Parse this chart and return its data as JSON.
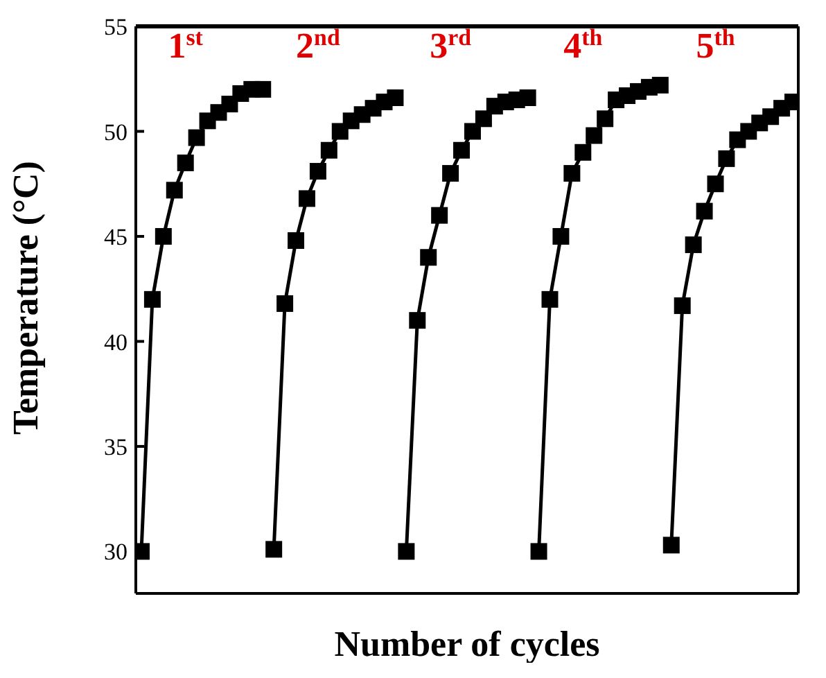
{
  "chart_data": {
    "type": "line",
    "xlabel": "Number of cycles",
    "ylabel": "Temperature (°C)",
    "categories": [
      null,
      null,
      null,
      null,
      null,
      null,
      null,
      null,
      null,
      null,
      null,
      null,
      null,
      null,
      null,
      null,
      null,
      null,
      null,
      null,
      null,
      null,
      null,
      null,
      null,
      null,
      null,
      null,
      null,
      null,
      null,
      null,
      null,
      null,
      null,
      null,
      null,
      null,
      null,
      null,
      null,
      null,
      null,
      null,
      null,
      null,
      null,
      null,
      null,
      null,
      null,
      null,
      null,
      null,
      null,
      null,
      null,
      null,
      null,
      null
    ],
    "series": [
      {
        "color": "#000000",
        "values": [
          30,
          42,
          45,
          47.2,
          48.5,
          49.7,
          50.5,
          50.9,
          51.3,
          51.8,
          52,
          52,
          null,
          null,
          null,
          null,
          null,
          null,
          null,
          null,
          null,
          null,
          null,
          null,
          null,
          null,
          null,
          null,
          null,
          null,
          null,
          null,
          null,
          null,
          null,
          null,
          null,
          null,
          null,
          null,
          null,
          null,
          null,
          null,
          null,
          null,
          null,
          null,
          null,
          null,
          null,
          null,
          null,
          null,
          null,
          null,
          null,
          null,
          null,
          null
        ]
      },
      {
        "color": "#000000",
        "values": [
          null,
          null,
          null,
          null,
          null,
          null,
          null,
          null,
          null,
          null,
          null,
          null,
          30.1,
          41.8,
          44.8,
          46.8,
          48.1,
          49.1,
          50,
          50.5,
          50.8,
          51.1,
          51.4,
          51.6,
          null,
          null,
          null,
          null,
          null,
          null,
          null,
          null,
          null,
          null,
          null,
          null,
          null,
          null,
          null,
          null,
          null,
          null,
          null,
          null,
          null,
          null,
          null,
          null,
          null,
          null,
          null,
          null,
          null,
          null,
          null,
          null,
          null,
          null,
          null,
          null
        ]
      },
      {
        "color": "#000000",
        "values": [
          null,
          null,
          null,
          null,
          null,
          null,
          null,
          null,
          null,
          null,
          null,
          null,
          null,
          null,
          null,
          null,
          null,
          null,
          null,
          null,
          null,
          null,
          null,
          null,
          30,
          41,
          44,
          46,
          48,
          49.1,
          50,
          50.6,
          51.2,
          51.4,
          51.5,
          51.6,
          null,
          null,
          null,
          null,
          null,
          null,
          null,
          null,
          null,
          null,
          null,
          null,
          null,
          null,
          null,
          null,
          null,
          null,
          null,
          null,
          null,
          null,
          null,
          null
        ]
      },
      {
        "color": "#000000",
        "values": [
          null,
          null,
          null,
          null,
          null,
          null,
          null,
          null,
          null,
          null,
          null,
          null,
          null,
          null,
          null,
          null,
          null,
          null,
          null,
          null,
          null,
          null,
          null,
          null,
          null,
          null,
          null,
          null,
          null,
          null,
          null,
          null,
          null,
          null,
          null,
          null,
          30,
          42,
          45,
          48,
          49,
          49.8,
          50.6,
          51.5,
          51.7,
          51.9,
          52.1,
          52.2,
          null,
          null,
          null,
          null,
          null,
          null,
          null,
          null,
          null,
          null,
          null,
          null
        ]
      },
      {
        "color": "#000000",
        "values": [
          null,
          null,
          null,
          null,
          null,
          null,
          null,
          null,
          null,
          null,
          null,
          null,
          null,
          null,
          null,
          null,
          null,
          null,
          null,
          null,
          null,
          null,
          null,
          null,
          null,
          null,
          null,
          null,
          null,
          null,
          null,
          null,
          null,
          null,
          null,
          null,
          null,
          null,
          null,
          null,
          null,
          null,
          null,
          null,
          null,
          null,
          null,
          null,
          30.3,
          41.7,
          44.6,
          46.2,
          47.5,
          48.7,
          49.6,
          50,
          50.4,
          50.7,
          51.1,
          51.4
        ]
      }
    ],
    "annotations": [
      "1$^{st}$",
      "2$^{nd}$",
      "3$^{rd}$",
      "4$^{th}$",
      "5$^{th}$"
    ],
    "ylim": [
      28,
      55
    ],
    "yticks": [
      30,
      35,
      40,
      45,
      50,
      55
    ],
    "marker": "square",
    "line_style": "solid",
    "grid": false,
    "legend": false,
    "tick_labels": "y"
  }
}
